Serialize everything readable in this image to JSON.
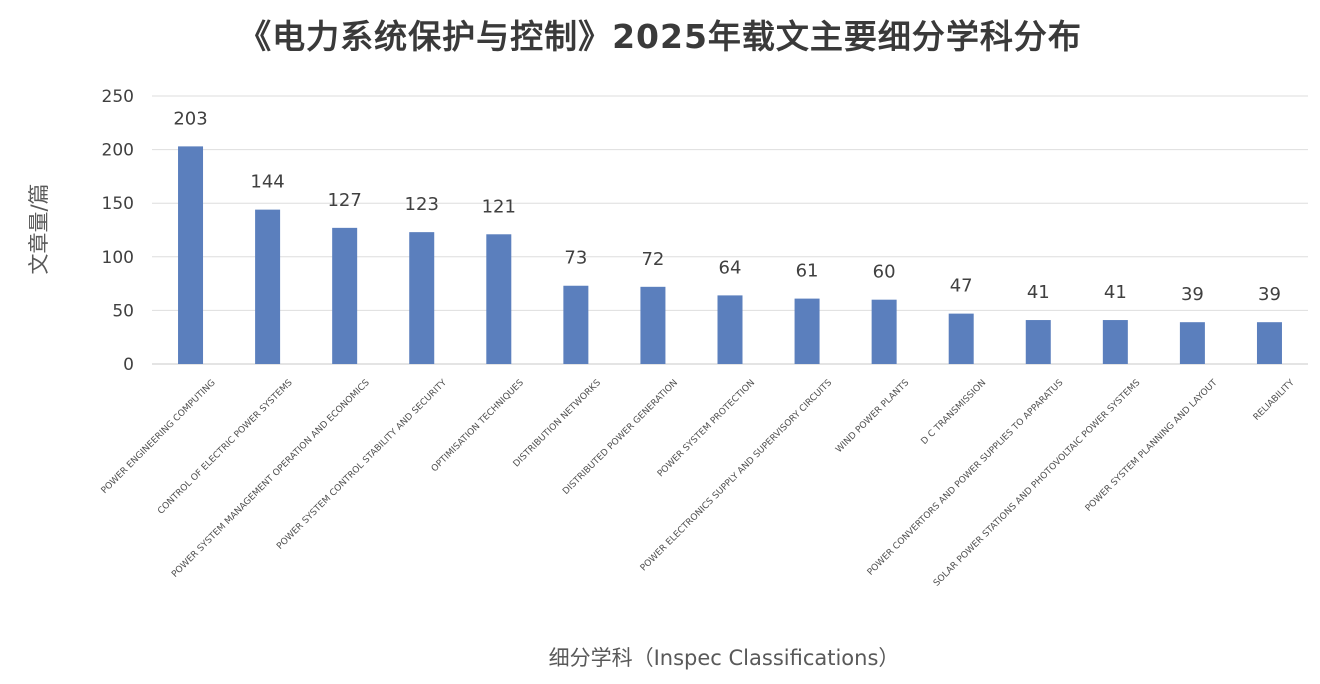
{
  "chart_data": {
    "type": "bar",
    "title": "《电力系统保护与控制》2025年载文主要细分学科分布",
    "xlabel": "细分学科（Inspec Classifications）",
    "ylabel": "文章量/篇",
    "ylim": [
      0,
      250
    ],
    "yticks": [
      0,
      50,
      100,
      150,
      200,
      250
    ],
    "grid": true,
    "legend": "none",
    "bar_color": "#5b7fbd",
    "categories": [
      "POWER ENGINEERING COMPUTING",
      "CONTROL OF ELECTRIC POWER SYSTEMS",
      "POWER SYSTEM MANAGEMENT OPERATION AND ECONOMICS",
      "POWER SYSTEM CONTROL STABILITY AND SECURITY",
      "OPTIMISATION TECHNIQUES",
      "DISTRIBUTION NETWORKS",
      "DISTRIBUTED POWER GENERATION",
      "POWER SYSTEM PROTECTION",
      "POWER ELECTRONICS SUPPLY AND SUPERVISORY CIRCUITS",
      "WIND POWER PLANTS",
      "D C TRANSMISSION",
      "POWER CONVERTORS AND POWER SUPPLIES TO APPARATUS",
      "SOLAR POWER STATIONS AND PHOTOVOLTAIC POWER SYSTEMS",
      "POWER SYSTEM PLANNING AND LAYOUT",
      "RELIABILITY"
    ],
    "values": [
      203,
      144,
      127,
      123,
      121,
      73,
      72,
      64,
      61,
      60,
      47,
      41,
      41,
      39,
      39
    ]
  }
}
